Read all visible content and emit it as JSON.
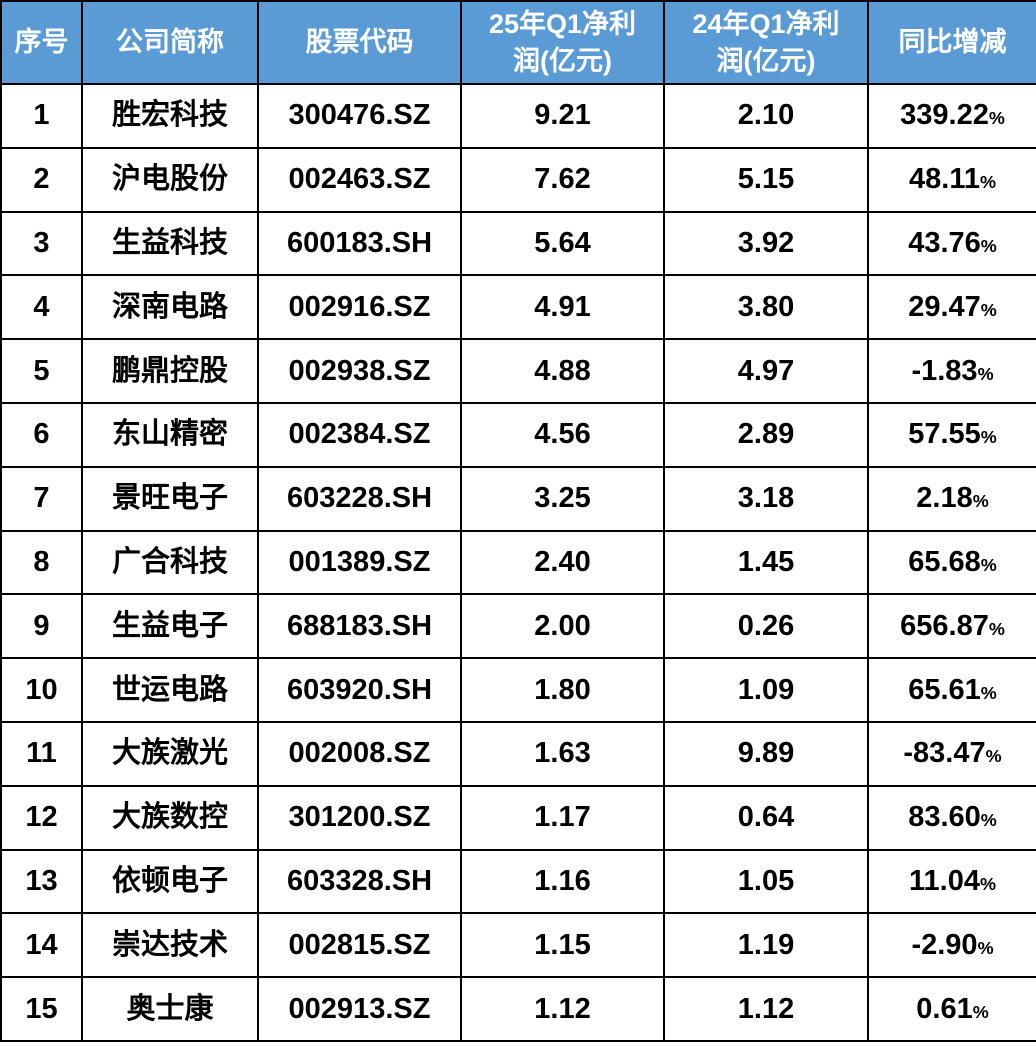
{
  "colors": {
    "header_bg": "#5B9BD5",
    "header_text": "#FFFFFF",
    "border": "#000000",
    "body_text": "#000000",
    "row_bg": "#FFFFFF"
  },
  "chart_data": {
    "type": "table",
    "title": "",
    "columns": [
      {
        "key": "seq",
        "label": "序号"
      },
      {
        "key": "name",
        "label": "公司简称"
      },
      {
        "key": "code",
        "label": "股票代码"
      },
      {
        "key": "q1_2025",
        "label": "25年Q1净利润(亿元)",
        "display_label": "25年Q1净利\n润(亿元)"
      },
      {
        "key": "q1_2024",
        "label": "24年Q1净利润(亿元)",
        "display_label": "24年Q1净利\n润(亿元)"
      },
      {
        "key": "yoy",
        "label": "同比增减"
      }
    ],
    "rows": [
      {
        "seq": "1",
        "name": "胜宏科技",
        "code": "300476.SZ",
        "q1_2025": "9.21",
        "q1_2024": "2.10",
        "yoy": "339.22%"
      },
      {
        "seq": "2",
        "name": "沪电股份",
        "code": "002463.SZ",
        "q1_2025": "7.62",
        "q1_2024": "5.15",
        "yoy": "48.11%"
      },
      {
        "seq": "3",
        "name": "生益科技",
        "code": "600183.SH",
        "q1_2025": "5.64",
        "q1_2024": "3.92",
        "yoy": "43.76%"
      },
      {
        "seq": "4",
        "name": "深南电路",
        "code": "002916.SZ",
        "q1_2025": "4.91",
        "q1_2024": "3.80",
        "yoy": "29.47%"
      },
      {
        "seq": "5",
        "name": "鹏鼎控股",
        "code": "002938.SZ",
        "q1_2025": "4.88",
        "q1_2024": "4.97",
        "yoy": "-1.83%"
      },
      {
        "seq": "6",
        "name": "东山精密",
        "code": "002384.SZ",
        "q1_2025": "4.56",
        "q1_2024": "2.89",
        "yoy": "57.55%"
      },
      {
        "seq": "7",
        "name": "景旺电子",
        "code": "603228.SH",
        "q1_2025": "3.25",
        "q1_2024": "3.18",
        "yoy": "2.18%"
      },
      {
        "seq": "8",
        "name": "广合科技",
        "code": "001389.SZ",
        "q1_2025": "2.40",
        "q1_2024": "1.45",
        "yoy": "65.68%"
      },
      {
        "seq": "9",
        "name": "生益电子",
        "code": "688183.SH",
        "q1_2025": "2.00",
        "q1_2024": "0.26",
        "yoy": "656.87%"
      },
      {
        "seq": "10",
        "name": "世运电路",
        "code": "603920.SH",
        "q1_2025": "1.80",
        "q1_2024": "1.09",
        "yoy": "65.61%"
      },
      {
        "seq": "11",
        "name": "大族激光",
        "code": "002008.SZ",
        "q1_2025": "1.63",
        "q1_2024": "9.89",
        "yoy": "-83.47%"
      },
      {
        "seq": "12",
        "name": "大族数控",
        "code": "301200.SZ",
        "q1_2025": "1.17",
        "q1_2024": "0.64",
        "yoy": "83.60%"
      },
      {
        "seq": "13",
        "name": "依顿电子",
        "code": "603328.SH",
        "q1_2025": "1.16",
        "q1_2024": "1.05",
        "yoy": "11.04%"
      },
      {
        "seq": "14",
        "name": "崇达技术",
        "code": "002815.SZ",
        "q1_2025": "1.15",
        "q1_2024": "1.19",
        "yoy": "-2.90%"
      },
      {
        "seq": "15",
        "name": "奥士康",
        "code": "002913.SZ",
        "q1_2025": "1.12",
        "q1_2024": "1.12",
        "yoy": "0.61%"
      }
    ]
  }
}
